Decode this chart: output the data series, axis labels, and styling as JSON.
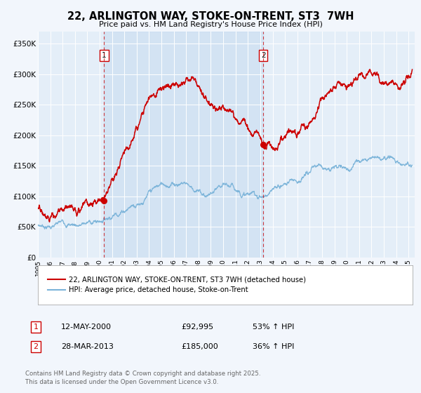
{
  "title": "22, ARLINGTON WAY, STOKE-ON-TRENT, ST3  7WH",
  "subtitle": "Price paid vs. HM Land Registry's House Price Index (HPI)",
  "background_color": "#f2f6fc",
  "plot_bg_color": "#e4eef8",
  "red_color": "#cc0000",
  "blue_color": "#7ab3d9",
  "marker1_date_x": 2000.36,
  "marker1_y": 92995,
  "marker2_date_x": 2013.24,
  "marker2_y": 185000,
  "vline1_x": 2000.36,
  "vline2_x": 2013.24,
  "ylim": [
    0,
    370000
  ],
  "xlim": [
    1995,
    2025.5
  ],
  "yticks": [
    0,
    50000,
    100000,
    150000,
    200000,
    250000,
    300000,
    350000
  ],
  "ytick_labels": [
    "£0",
    "£50K",
    "£100K",
    "£150K",
    "£200K",
    "£250K",
    "£300K",
    "£350K"
  ],
  "xticks": [
    1995,
    1996,
    1997,
    1998,
    1999,
    2000,
    2001,
    2002,
    2003,
    2004,
    2005,
    2006,
    2007,
    2008,
    2009,
    2010,
    2011,
    2012,
    2013,
    2014,
    2015,
    2016,
    2017,
    2018,
    2019,
    2020,
    2021,
    2022,
    2023,
    2024,
    2025
  ],
  "legend1_label": "22, ARLINGTON WAY, STOKE-ON-TRENT, ST3 7WH (detached house)",
  "legend2_label": "HPI: Average price, detached house, Stoke-on-Trent",
  "table_row1": [
    "1",
    "12-MAY-2000",
    "£92,995",
    "53% ↑ HPI"
  ],
  "table_row2": [
    "2",
    "28-MAR-2013",
    "£185,000",
    "36% ↑ HPI"
  ],
  "footer": "Contains HM Land Registry data © Crown copyright and database right 2025.\nThis data is licensed under the Open Government Licence v3.0."
}
